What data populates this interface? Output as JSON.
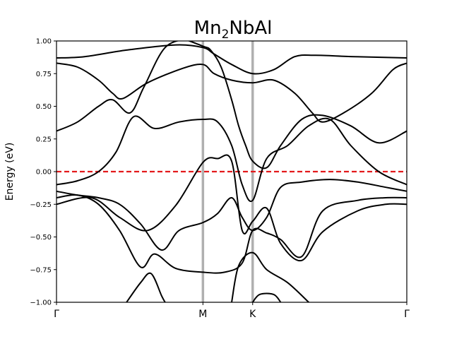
{
  "chart_data": {
    "type": "line",
    "title": {
      "base": "Mn",
      "sub": "2",
      "rest": "NbAl"
    },
    "ylabel": "Energy (eV)",
    "xlabel": "",
    "ylim": [
      -1.0,
      1.0
    ],
    "yticks": [
      1.0,
      0.75,
      0.5,
      0.25,
      0.0,
      -0.25,
      -0.5,
      -0.75,
      -1.0
    ],
    "ytick_labels": [
      "1.00",
      "0.75",
      "0.50",
      "0.25",
      "0.00",
      "−0.25",
      "−0.50",
      "−0.75",
      "−1.00"
    ],
    "xlim": [
      0,
      1
    ],
    "kpoints": [
      {
        "label": "Γ",
        "x": 0.0
      },
      {
        "label": "M",
        "x": 0.418
      },
      {
        "label": "K",
        "x": 0.56
      },
      {
        "label": "Γ",
        "x": 1.0
      }
    ],
    "fermi_level": 0.0,
    "colors": {
      "band": "#000000",
      "fermi": "#e31a1c",
      "kline": "#b0b0b0"
    },
    "series": [
      {
        "values": [
          [
            0.0,
            0.87
          ],
          [
            0.08,
            0.88
          ],
          [
            0.2,
            0.93
          ],
          [
            0.34,
            0.97
          ],
          [
            0.418,
            0.95
          ],
          [
            0.45,
            0.9
          ],
          [
            0.5,
            0.82
          ],
          [
            0.56,
            0.75
          ],
          [
            0.62,
            0.78
          ],
          [
            0.68,
            0.88
          ],
          [
            0.74,
            0.89
          ],
          [
            0.85,
            0.88
          ],
          [
            1.0,
            0.87
          ]
        ]
      },
      {
        "values": [
          [
            0.0,
            0.83
          ],
          [
            0.06,
            0.8
          ],
          [
            0.12,
            0.7
          ],
          [
            0.16,
            0.6
          ],
          [
            0.19,
            0.56
          ],
          [
            0.26,
            0.68
          ],
          [
            0.36,
            0.79
          ],
          [
            0.418,
            0.82
          ],
          [
            0.45,
            0.75
          ],
          [
            0.5,
            0.7
          ],
          [
            0.56,
            0.68
          ],
          [
            0.62,
            0.7
          ],
          [
            0.68,
            0.6
          ],
          [
            0.73,
            0.45
          ],
          [
            0.76,
            0.38
          ],
          [
            0.82,
            0.45
          ],
          [
            0.9,
            0.6
          ],
          [
            0.96,
            0.78
          ],
          [
            1.0,
            0.83
          ]
        ]
      },
      {
        "values": [
          [
            0.0,
            0.31
          ],
          [
            0.06,
            0.38
          ],
          [
            0.12,
            0.5
          ],
          [
            0.16,
            0.55
          ],
          [
            0.21,
            0.45
          ],
          [
            0.25,
            0.65
          ],
          [
            0.31,
            0.95
          ],
          [
            0.38,
            1.02
          ]
        ]
      },
      {
        "values": [
          [
            0.36,
            1.02
          ],
          [
            0.418,
            0.96
          ],
          [
            0.44,
            0.93
          ],
          [
            0.47,
            0.8
          ],
          [
            0.5,
            0.55
          ],
          [
            0.52,
            0.35
          ],
          [
            0.54,
            0.2
          ],
          [
            0.56,
            0.08
          ],
          [
            0.6,
            0.03
          ],
          [
            0.64,
            0.2
          ],
          [
            0.7,
            0.4
          ],
          [
            0.76,
            0.43
          ],
          [
            0.84,
            0.35
          ],
          [
            0.92,
            0.22
          ],
          [
            1.0,
            0.31
          ]
        ]
      },
      {
        "values": [
          [
            0.0,
            -0.1
          ],
          [
            0.06,
            -0.07
          ],
          [
            0.12,
            0.0
          ],
          [
            0.17,
            0.15
          ],
          [
            0.22,
            0.42
          ],
          [
            0.28,
            0.33
          ],
          [
            0.35,
            0.38
          ],
          [
            0.418,
            0.4
          ],
          [
            0.46,
            0.38
          ],
          [
            0.5,
            0.2
          ],
          [
            0.53,
            -0.1
          ],
          [
            0.56,
            -0.22
          ],
          [
            0.6,
            0.1
          ],
          [
            0.66,
            0.2
          ],
          [
            0.72,
            0.35
          ],
          [
            0.78,
            0.4
          ],
          [
            0.84,
            0.2
          ],
          [
            0.92,
            0.0
          ],
          [
            1.0,
            -0.1
          ]
        ]
      },
      {
        "values": [
          [
            0.0,
            -0.15
          ],
          [
            0.06,
            -0.18
          ],
          [
            0.12,
            -0.2
          ],
          [
            0.18,
            -0.25
          ],
          [
            0.24,
            -0.4
          ],
          [
            0.3,
            -0.6
          ],
          [
            0.35,
            -0.45
          ],
          [
            0.418,
            -0.39
          ],
          [
            0.46,
            -0.32
          ],
          [
            0.5,
            -0.2
          ],
          [
            0.53,
            -0.35
          ],
          [
            0.56,
            -0.45
          ],
          [
            0.6,
            -0.35
          ],
          [
            0.64,
            -0.12
          ],
          [
            0.7,
            -0.08
          ],
          [
            0.78,
            -0.06
          ],
          [
            0.86,
            -0.08
          ],
          [
            0.94,
            -0.12
          ],
          [
            1.0,
            -0.15
          ]
        ]
      },
      {
        "values": [
          [
            0.0,
            -0.2
          ],
          [
            0.06,
            -0.18
          ],
          [
            0.12,
            -0.25
          ],
          [
            0.18,
            -0.45
          ],
          [
            0.24,
            -0.73
          ],
          [
            0.28,
            -0.63
          ],
          [
            0.34,
            -0.74
          ],
          [
            0.418,
            -0.77
          ],
          [
            0.48,
            -0.77
          ],
          [
            0.53,
            -0.7
          ],
          [
            0.56,
            -0.45
          ],
          [
            0.6,
            -0.47
          ],
          [
            0.64,
            -0.52
          ],
          [
            0.7,
            -0.65
          ],
          [
            0.76,
            -0.3
          ],
          [
            0.86,
            -0.22
          ],
          [
            0.94,
            -0.2
          ],
          [
            1.0,
            -0.2
          ]
        ]
      },
      {
        "values": [
          [
            0.0,
            -0.25
          ],
          [
            0.1,
            -0.2
          ],
          [
            0.18,
            -0.35
          ],
          [
            0.26,
            -0.45
          ],
          [
            0.34,
            -0.26
          ],
          [
            0.418,
            0.07
          ],
          [
            0.46,
            0.1
          ],
          [
            0.5,
            0.08
          ],
          [
            0.53,
            -0.45
          ],
          [
            0.56,
            -0.38
          ],
          [
            0.6,
            -0.28
          ],
          [
            0.64,
            -0.55
          ],
          [
            0.7,
            -0.68
          ],
          [
            0.76,
            -0.46
          ],
          [
            0.86,
            -0.3
          ],
          [
            0.94,
            -0.25
          ],
          [
            1.0,
            -0.25
          ]
        ]
      },
      {
        "values": [
          [
            0.2,
            -1.0
          ],
          [
            0.24,
            -0.85
          ],
          [
            0.27,
            -0.78
          ],
          [
            0.3,
            -0.95
          ],
          [
            0.31,
            -1.0
          ]
        ]
      },
      {
        "values": [
          [
            0.5,
            -1.0
          ],
          [
            0.52,
            -0.72
          ],
          [
            0.56,
            -0.62
          ],
          [
            0.6,
            -0.75
          ],
          [
            0.66,
            -0.85
          ],
          [
            0.72,
            -1.0
          ]
        ]
      },
      {
        "values": [
          [
            0.56,
            -1.0
          ],
          [
            0.58,
            -0.94
          ],
          [
            0.62,
            -0.94
          ],
          [
            0.64,
            -1.0
          ]
        ]
      }
    ]
  }
}
